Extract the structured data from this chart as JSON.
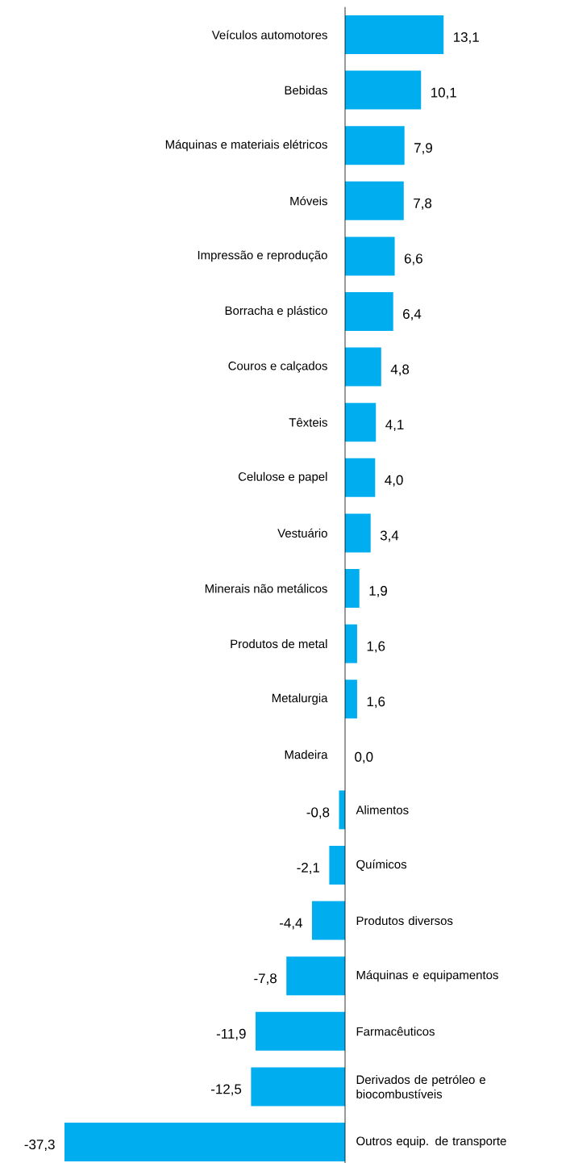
{
  "chart_data": {
    "type": "bar",
    "orientation": "horizontal",
    "color": "#00aeef",
    "categories": [
      "Veículos automotores",
      "Bebidas",
      "Máquinas e materiais elétricos",
      "Móveis",
      "Impressão e reprodução",
      "Borracha e plástico",
      "Couros e calçados",
      "Têxteis",
      "Celulose e papel",
      "Vestuário",
      "Minerais não metálicos",
      "Produtos de metal",
      "Metalurgia",
      "Madeira",
      "Alimentos",
      "Químicos",
      "Produtos diversos",
      "Máquinas e equipamentos",
      "Farmacêuticos",
      "Derivados de petróleo e biocombustíveis",
      "Outros equip. de transporte"
    ],
    "values": [
      13.1,
      10.1,
      7.9,
      7.8,
      6.6,
      6.4,
      4.8,
      4.1,
      4.0,
      3.4,
      1.9,
      1.6,
      1.6,
      0.0,
      -0.8,
      -2.1,
      -4.4,
      -7.8,
      -11.9,
      -12.5,
      -37.3
    ],
    "value_labels": [
      "13,1",
      "10,1",
      "7,9",
      "7,8",
      "6,6",
      "6,4",
      "4,8",
      "4,1",
      "4,0",
      "3,4",
      "1,9",
      "1,6",
      "1,6",
      "0,0",
      "-0,8",
      "-2,1",
      "-4,4",
      "-7,8",
      "-11,9",
      "-12,5",
      "-37,3"
    ]
  }
}
